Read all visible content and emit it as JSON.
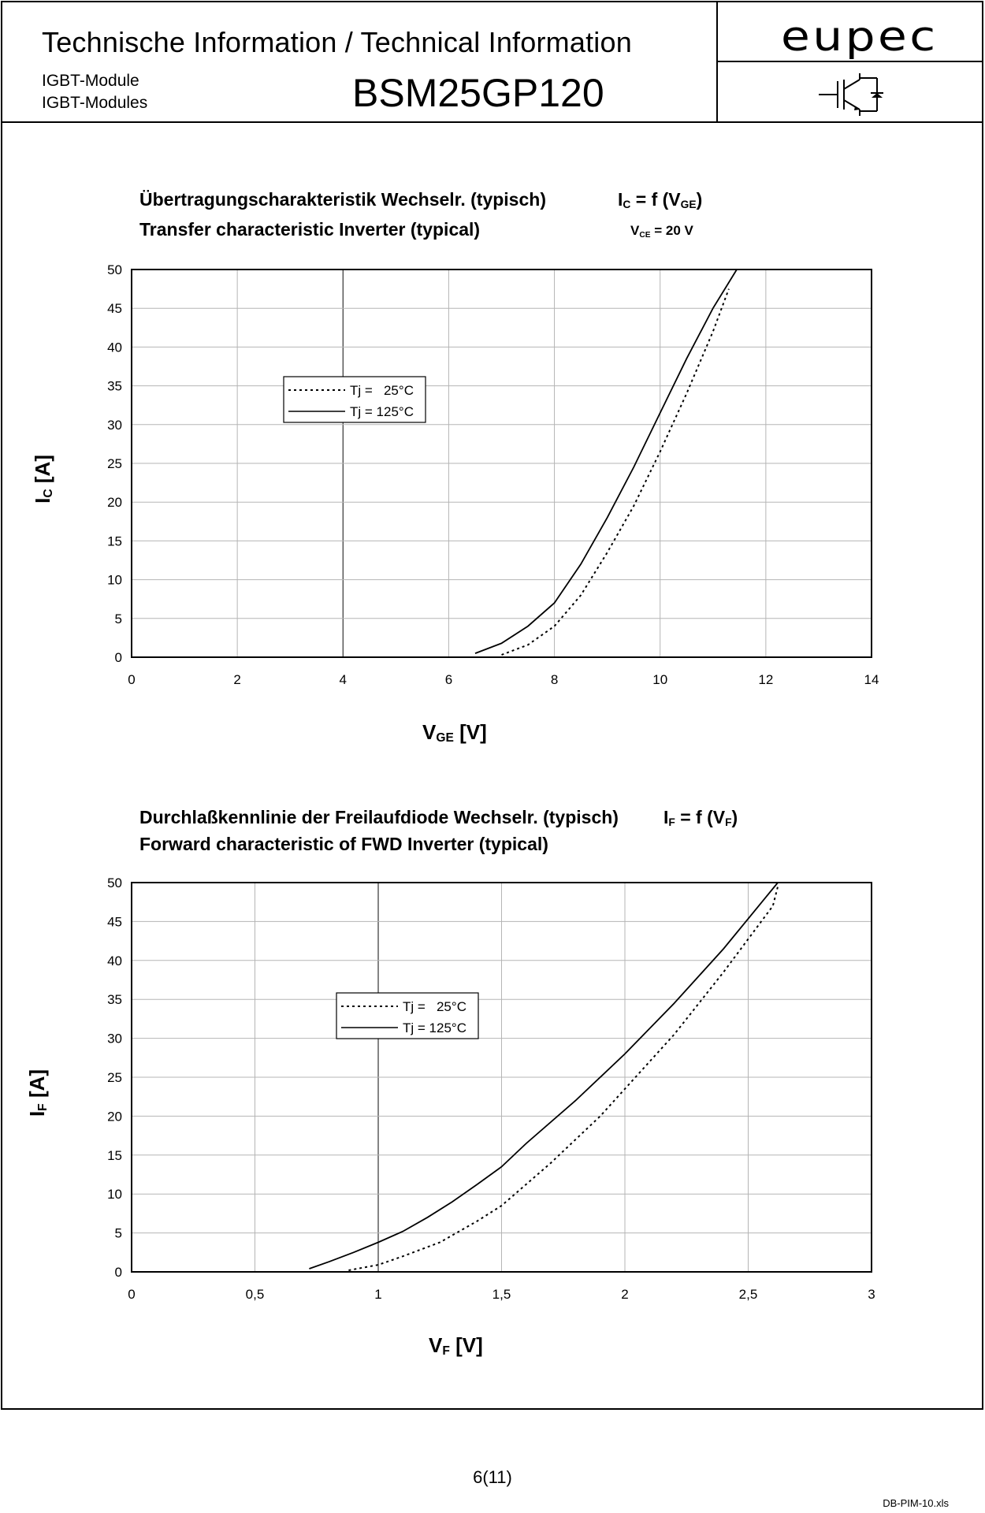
{
  "header": {
    "title": "Technische Information / Technical Information",
    "subtitle_de": "IGBT-Module",
    "subtitle_en": "IGBT-Modules",
    "part_number": "BSM25GP120",
    "logo": "eupec",
    "symbol_icon": "igbt-symbol-icon"
  },
  "charts": [
    {
      "title_de": "Übertragungscharakteristik Wechselr. (typisch)",
      "title_en": "Transfer characteristic Inverter (typical)",
      "formula_main": "I",
      "formula_sub1": "C",
      "formula_mid": " = f (V",
      "formula_sub2": "GE",
      "formula_end": ")",
      "condition_main": "V",
      "condition_sub": "CE",
      "condition_end": " = 20 V",
      "ylabel_main": "I",
      "ylabel_sub": "C",
      "ylabel_end": " [A]",
      "xlabel_main": "V",
      "xlabel_sub": "GE",
      "xlabel_end": " [V]"
    },
    {
      "title_de": "Durchlaßkennlinie der Freilaufdiode Wechselr.  (typisch)",
      "title_en": "Forward characteristic of FWD Inverter (typical)",
      "formula_main": "I",
      "formula_sub1": "F",
      "formula_mid": " = f (V",
      "formula_sub2": "F",
      "formula_end": ")",
      "ylabel_main": "I",
      "ylabel_sub": "F",
      "ylabel_end": " [A]",
      "xlabel_main": "V",
      "xlabel_sub": "F",
      "xlabel_end": " [V]"
    }
  ],
  "chart_data": [
    {
      "type": "line",
      "xlim": [
        0,
        14
      ],
      "ylim": [
        0,
        50
      ],
      "xticks": [
        "0",
        "2",
        "4",
        "6",
        "8",
        "10",
        "12",
        "14"
      ],
      "xtick_values": [
        0,
        2,
        4,
        6,
        8,
        10,
        12,
        14
      ],
      "yticks": [
        "0",
        "5",
        "10",
        "15",
        "20",
        "25",
        "30",
        "35",
        "40",
        "45",
        "50"
      ],
      "ytick_values": [
        0,
        5,
        10,
        15,
        20,
        25,
        30,
        35,
        40,
        45,
        50
      ],
      "grid": true,
      "legend_position": "upper-left",
      "series": [
        {
          "name": "Tj =   25°C",
          "style": "dotted",
          "x": [
            7.0,
            7.5,
            8.0,
            8.5,
            9.0,
            9.5,
            10.0,
            10.5,
            11.0,
            11.3
          ],
          "y": [
            0.3,
            1.6,
            4.0,
            8.0,
            13.5,
            19.5,
            26.5,
            34.0,
            42.0,
            47.5
          ]
        },
        {
          "name": "Tj = 125°C",
          "style": "solid",
          "x": [
            6.5,
            7.0,
            7.5,
            8.0,
            8.5,
            9.0,
            9.5,
            10.0,
            10.5,
            11.0,
            11.45
          ],
          "y": [
            0.5,
            1.8,
            4.0,
            7.0,
            12.0,
            18.0,
            24.5,
            31.5,
            38.5,
            45.0,
            50.0
          ]
        }
      ]
    },
    {
      "type": "line",
      "xlim": [
        0,
        3
      ],
      "ylim": [
        0,
        50
      ],
      "xticks": [
        "0",
        "0,5",
        "1",
        "1,5",
        "2",
        "2,5",
        "3"
      ],
      "xtick_values": [
        0,
        0.5,
        1,
        1.5,
        2,
        2.5,
        3
      ],
      "yticks": [
        "0",
        "5",
        "10",
        "15",
        "20",
        "25",
        "30",
        "35",
        "40",
        "45",
        "50"
      ],
      "ytick_values": [
        0,
        5,
        10,
        15,
        20,
        25,
        30,
        35,
        40,
        45,
        50
      ],
      "grid": true,
      "legend_position": "upper-left",
      "series": [
        {
          "name": "Tj =   25°C",
          "style": "dotted",
          "x": [
            0.88,
            1.0,
            1.1,
            1.25,
            1.4,
            1.5,
            1.7,
            1.9,
            2.0,
            2.2,
            2.4,
            2.6,
            2.62
          ],
          "y": [
            0.2,
            0.9,
            2.0,
            3.8,
            6.5,
            8.5,
            14.0,
            20.0,
            23.5,
            30.5,
            38.5,
            47.0,
            49.5
          ]
        },
        {
          "name": "Tj = 125°C",
          "style": "solid",
          "x": [
            0.72,
            0.8,
            0.9,
            1.0,
            1.1,
            1.2,
            1.3,
            1.4,
            1.5,
            1.6,
            1.8,
            2.0,
            2.2,
            2.4,
            2.62
          ],
          "y": [
            0.4,
            1.3,
            2.5,
            3.8,
            5.2,
            7.0,
            9.0,
            11.2,
            13.5,
            16.5,
            22.0,
            28.0,
            34.5,
            41.5,
            50.0
          ]
        }
      ]
    }
  ],
  "footer": {
    "page": "6(11)",
    "file": "DB-PIM-10.xls"
  }
}
